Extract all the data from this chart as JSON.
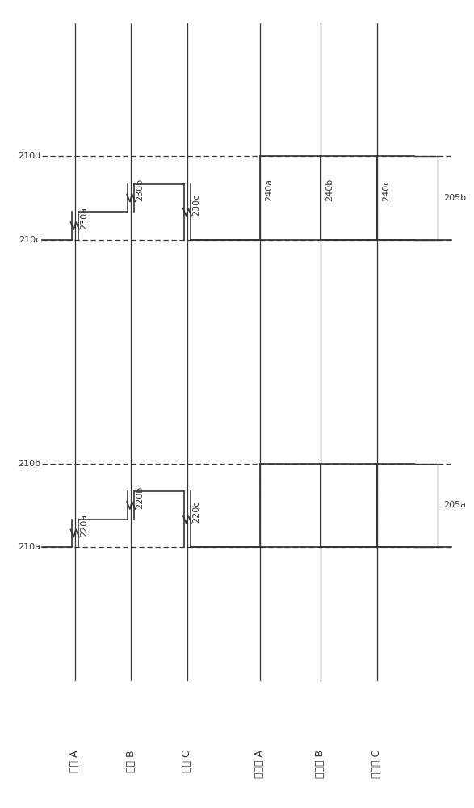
{
  "bg_color": "#ffffff",
  "line_color": "#333333",
  "dashed_color": "#333333",
  "dotted_color": "#888888",
  "fig_width": 5.87,
  "fig_height": 10.0,
  "dpi": 100,
  "x_min": 0,
  "x_max": 10,
  "y_min": -1.5,
  "y_max": 10,
  "lane_labels": [
    "信号 A",
    "信号 B",
    "信号 C",
    "屏幕上 A",
    "屏幕上 B",
    "屏幕上 C"
  ],
  "lane_x": [
    1.55,
    2.75,
    3.95,
    5.5,
    6.8,
    8.0
  ],
  "y210a": 2.2,
  "y210b": 3.4,
  "y210c": 6.6,
  "y210d": 7.8,
  "label_210a": "210a",
  "label_210b": "210b",
  "label_210c": "210c",
  "label_210d": "210d",
  "font_size_label": 9,
  "font_size_ref": 8,
  "font_size_annot": 8
}
